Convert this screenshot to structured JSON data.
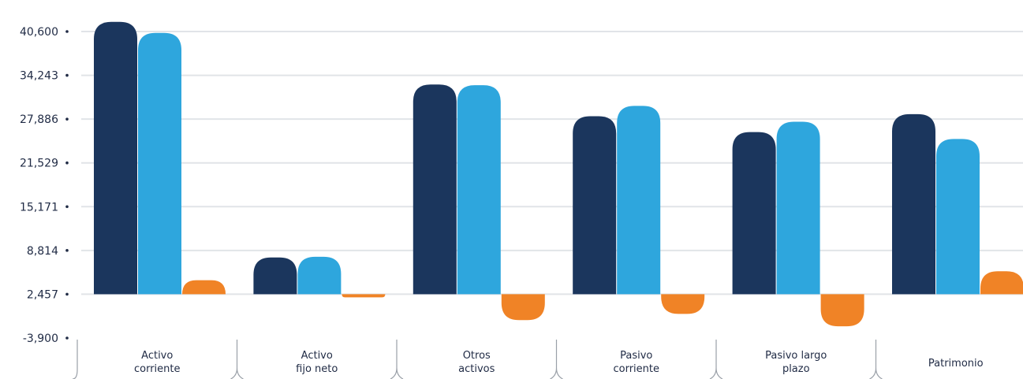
{
  "chart_data": {
    "type": "bar",
    "title": "",
    "xlabel": "",
    "ylabel": "",
    "ylim": [
      -3900,
      42000
    ],
    "y_ticks": [
      -3900,
      2457,
      8814,
      15171,
      21529,
      27886,
      34243,
      40600
    ],
    "y_tick_labels": [
      "-3,900",
      "2,457",
      "8,814",
      "15,171",
      "21,529",
      "27,886",
      "34,243",
      "40,600"
    ],
    "categories": [
      [
        "Activo",
        "corriente"
      ],
      [
        "Activo",
        "fijo neto"
      ],
      [
        "Otros",
        "activos"
      ],
      [
        "Pasivo",
        "corriente"
      ],
      [
        "Pasivo largo",
        "plazo"
      ],
      [
        "Patrimonio"
      ]
    ],
    "series": [
      {
        "color": "#1b365d",
        "values": [
          42000,
          7800,
          32900,
          28300,
          26000,
          28600
        ]
      },
      {
        "color": "#2ea6dd",
        "values": [
          40400,
          7900,
          32800,
          29800,
          27500,
          25000
        ]
      },
      {
        "color": "#f08326",
        "values": [
          4500,
          2000,
          -1300,
          -400,
          -2200,
          5800
        ]
      }
    ],
    "grid": true,
    "legend": "none"
  }
}
